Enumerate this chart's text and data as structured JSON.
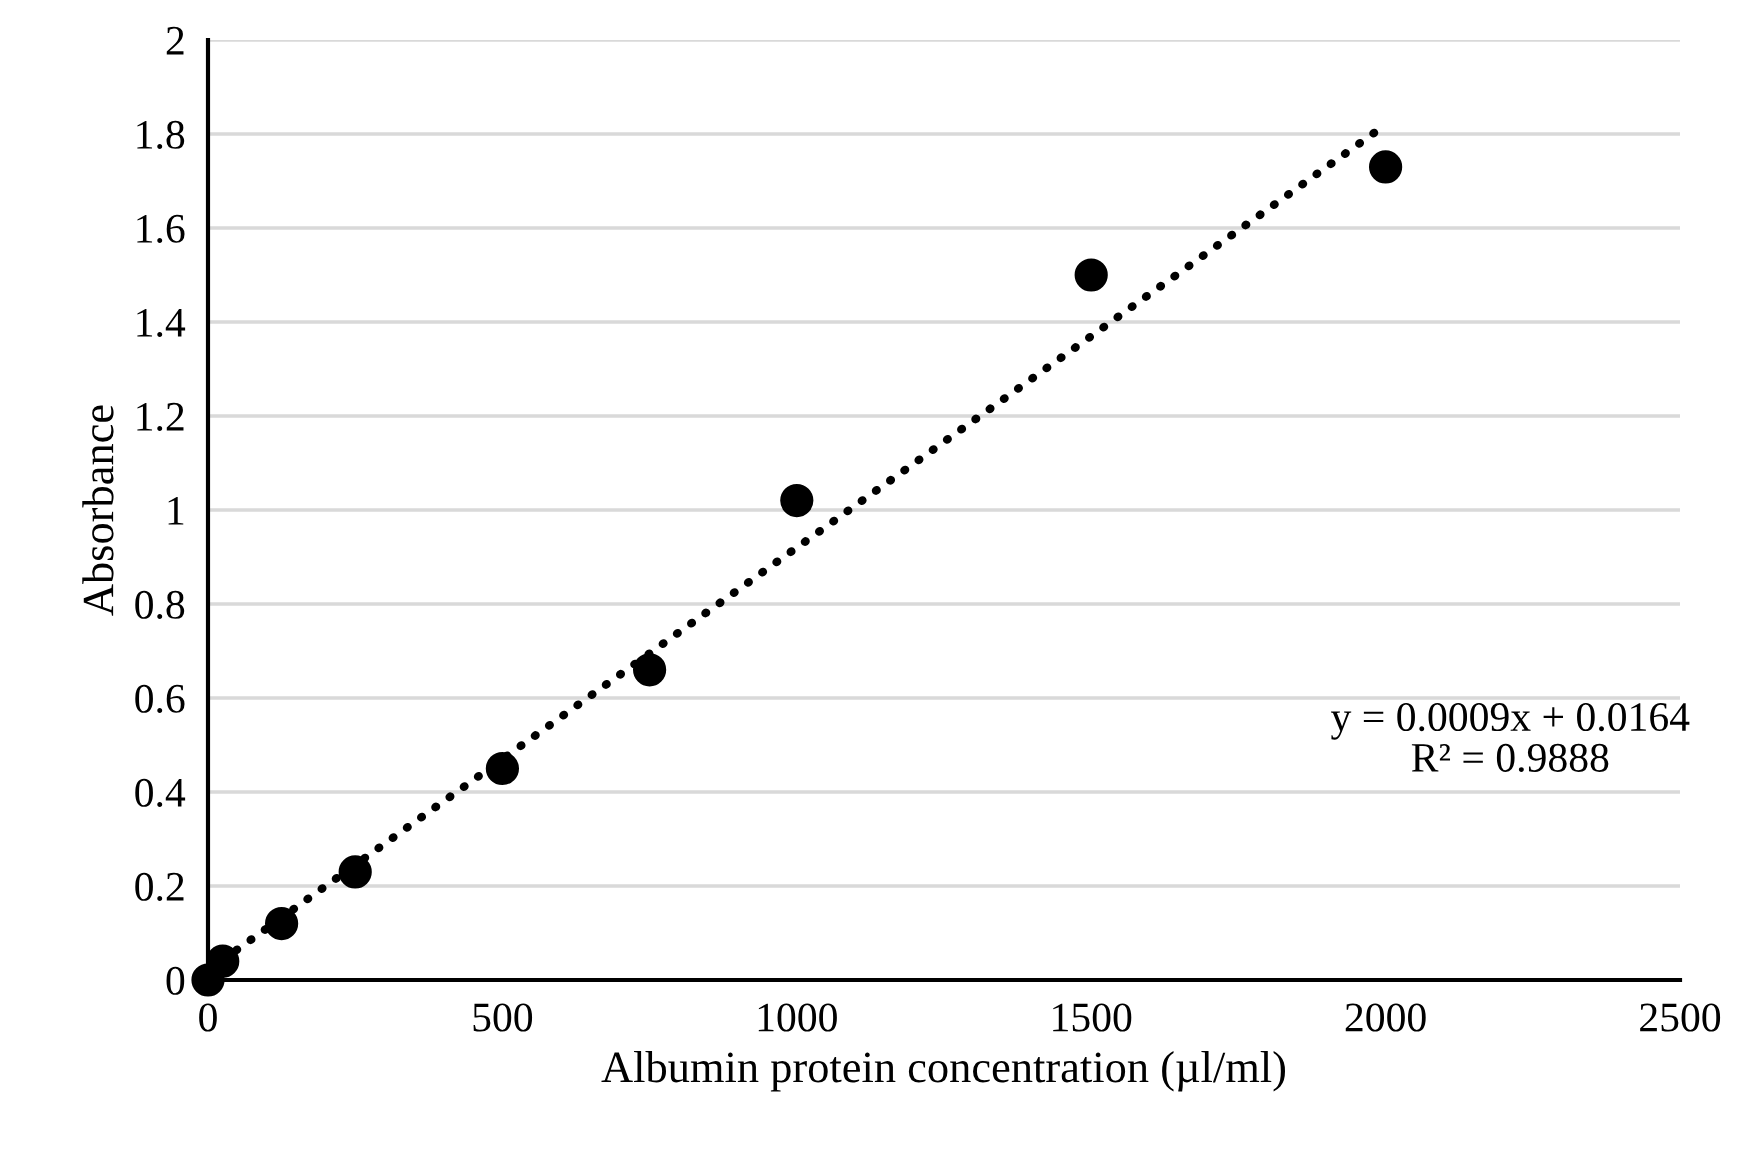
{
  "chart_data": {
    "type": "scatter",
    "xlabel": "Albumin protein concentration (µl/ml)",
    "ylabel": "Absorbance",
    "x": [
      0,
      25,
      125,
      250,
      500,
      750,
      1000,
      1500,
      2000
    ],
    "series": [
      {
        "color": "#000000",
        "marker": "circle",
        "values": [
          0,
          0.04,
          0.12,
          0.23,
          0.45,
          0.66,
          1.02,
          1.5,
          1.73
        ]
      },
      {
        "type": "line",
        "color": "#000000",
        "line_style": "dotted",
        "x": [
          0,
          2000
        ],
        "values": [
          0.02,
          1.82
        ]
      }
    ],
    "annotations": [
      "y = 0.0009x + 0.0164\nR² = 0.9888"
    ],
    "xlim": [
      0,
      2500
    ],
    "xticks": [
      0,
      500,
      1000,
      1500,
      2000,
      2500
    ],
    "ylim": [
      0,
      2
    ],
    "yticks": [
      0,
      0.2,
      0.4,
      0.6,
      0.8,
      1,
      1.2,
      1.4,
      1.6,
      1.8,
      2
    ],
    "grid": "y",
    "legend": false
  }
}
